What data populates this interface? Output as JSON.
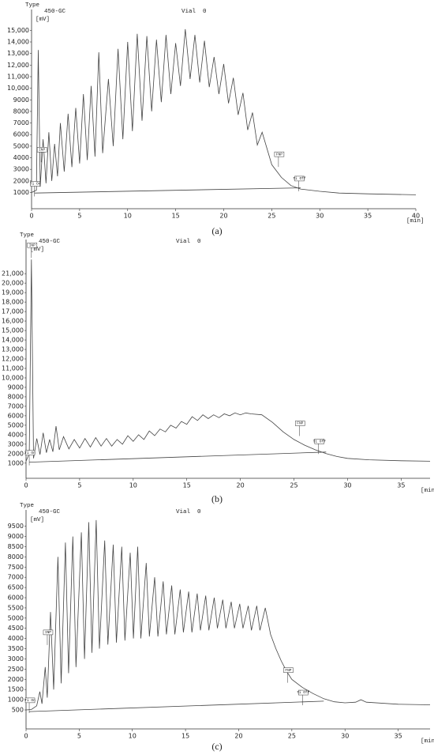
{
  "chart_data": [
    {
      "type": "line",
      "header": "Type",
      "instrument": "450-GC",
      "vial": "Vial  0",
      "y_unit": "[mV]",
      "x_unit": "[min]",
      "caption": "(a)",
      "xlim": [
        0,
        40
      ],
      "xticks": [
        0,
        5,
        10,
        15,
        20,
        25,
        30,
        35,
        40
      ],
      "ylim": [
        -400,
        16800
      ],
      "yticks": [
        1000,
        2000,
        3000,
        4000,
        5000,
        6000,
        7000,
        8000,
        9000,
        {
          "value": 10000,
          "label": "10,000"
        },
        {
          "value": 11000,
          "label": "11,000"
        },
        {
          "value": 12000,
          "label": "12,000"
        },
        {
          "value": 13000,
          "label": "13,000"
        },
        {
          "value": 14000,
          "label": "14,000"
        },
        {
          "value": 15000,
          "label": "15,000"
        }
      ],
      "series": [
        {
          "color": "#444444",
          "x": [
            0,
            0.5,
            0.7,
            0.9,
            1.2,
            1.5,
            1.8,
            2.1,
            2.4,
            2.7,
            3.0,
            3.4,
            3.8,
            4.2,
            4.6,
            5.0,
            5.4,
            5.8,
            6.2,
            6.6,
            7.0,
            7.4,
            8.0,
            8.5,
            9.0,
            9.5,
            10.0,
            10.5,
            11.0,
            11.5,
            12.0,
            12.5,
            13.0,
            13.5,
            14.0,
            14.5,
            15.0,
            15.5,
            16.0,
            16.5,
            17.0,
            17.5,
            18.0,
            18.5,
            19.0,
            19.5,
            20.0,
            20.5,
            21.0,
            21.5,
            22.0,
            22.5,
            23.0,
            23.5,
            24.0,
            25.0,
            26.0,
            27.0,
            28.0,
            30.0,
            32.0,
            35.0,
            40.0
          ],
          "values": [
            1000,
            1200,
            13300,
            1500,
            5600,
            1800,
            6200,
            2000,
            5200,
            2400,
            7000,
            2800,
            7800,
            3200,
            8300,
            3500,
            9500,
            3800,
            10200,
            4100,
            13100,
            4400,
            10800,
            5000,
            13400,
            5600,
            14000,
            6300,
            14700,
            7200,
            14500,
            8000,
            14200,
            8800,
            14600,
            9500,
            13900,
            10200,
            15100,
            10800,
            14600,
            10500,
            14100,
            10100,
            12700,
            9500,
            12100,
            8700,
            10900,
            7700,
            9600,
            6400,
            7900,
            5100,
            6200,
            3400,
            2300,
            1600,
            1300,
            1100,
            950,
            880,
            800
          ]
        },
        {
          "color": "#444444",
          "x": [
            0.3,
            28
          ],
          "values": [
            950,
            1400
          ]
        }
      ],
      "annotations": [
        {
          "text": "Ti On",
          "x": 0.3,
          "y": 1750
        },
        {
          "text": "INP",
          "x": 1.0,
          "y": 4700
        },
        {
          "text": "FNP",
          "x": 25.7,
          "y": 4300
        },
        {
          "text": "Ti Off",
          "x": 27.8,
          "y": 2200
        }
      ]
    },
    {
      "type": "line",
      "header": "Type",
      "instrument": "450-GC",
      "vial": "Vial  0",
      "y_unit": "[mV]",
      "x_unit": "[min]",
      "caption": "(b)",
      "xlim": [
        0,
        37.7
      ],
      "xticks": [
        0,
        5,
        10,
        15,
        20,
        25,
        30,
        35
      ],
      "ylim": [
        -600,
        24600
      ],
      "yticks": [
        1000,
        2000,
        3000,
        4000,
        5000,
        6000,
        7000,
        8000,
        9000,
        {
          "value": 10000,
          "label": "10,000"
        },
        {
          "value": 11000,
          "label": "11,000"
        },
        {
          "value": 12000,
          "label": "12,000"
        },
        {
          "value": 13000,
          "label": "13,000"
        },
        {
          "value": 14000,
          "label": "14,000"
        },
        {
          "value": 15000,
          "label": "15,000"
        },
        {
          "value": 16000,
          "label": "16,000"
        },
        {
          "value": 17000,
          "label": "17,000"
        },
        {
          "value": 18000,
          "label": "18,000"
        },
        {
          "value": 19000,
          "label": "19,000"
        },
        {
          "value": 20000,
          "label": "20,000"
        },
        {
          "value": 21000,
          "label": "21,000"
        }
      ],
      "series": [
        {
          "color": "#444444",
          "x": [
            0,
            0.3,
            0.5,
            0.7,
            1.0,
            1.3,
            1.6,
            1.9,
            2.2,
            2.5,
            2.8,
            3.1,
            3.5,
            4.0,
            4.5,
            5.0,
            5.5,
            6.0,
            6.5,
            7.0,
            7.5,
            8.0,
            8.5,
            9.0,
            9.5,
            10.0,
            10.5,
            11.0,
            11.5,
            12.0,
            12.5,
            13.0,
            13.5,
            14.0,
            14.5,
            15.0,
            15.5,
            16.0,
            16.5,
            17.0,
            17.5,
            18.0,
            18.5,
            19.0,
            19.5,
            20.0,
            20.5,
            21.0,
            22,
            23,
            24,
            25,
            26,
            27,
            28,
            29,
            30,
            32,
            35,
            37.7
          ],
          "values": [
            1200,
            2000,
            22500,
            1500,
            3600,
            1900,
            4200,
            2100,
            3500,
            2200,
            4900,
            2400,
            3800,
            2500,
            3500,
            2600,
            3600,
            2700,
            3700,
            2800,
            3600,
            2800,
            3500,
            3000,
            3900,
            3300,
            4000,
            3500,
            4400,
            3900,
            4600,
            4300,
            5000,
            4700,
            5400,
            5100,
            5900,
            5500,
            6100,
            5700,
            6100,
            5800,
            6200,
            6000,
            6300,
            6100,
            6300,
            6200,
            6100,
            5300,
            4300,
            3500,
            2900,
            2400,
            2000,
            1700,
            1500,
            1350,
            1250,
            1200
          ]
        },
        {
          "color": "#444444",
          "x": [
            0.3,
            28
          ],
          "values": [
            1100,
            2170
          ]
        }
      ],
      "annotations": [
        {
          "text": "INP",
          "x": 0.5,
          "y": 24000
        },
        {
          "text": "Ti On",
          "x": 0.3,
          "y": 2100
        },
        {
          "text": "FNP",
          "x": 25.5,
          "y": 5200
        },
        {
          "text": "Ti Off",
          "x": 27.3,
          "y": 3300
        }
      ]
    },
    {
      "type": "line",
      "header": "Type",
      "instrument": "450-GC",
      "vial": "Vial  0",
      "y_unit": "[mV]",
      "x_unit": "[min]",
      "caption": "(c)",
      "xlim": [
        0,
        38
      ],
      "xticks": [
        0,
        5,
        10,
        15,
        20,
        25,
        30,
        35
      ],
      "ylim": [
        -430,
        10300
      ],
      "yticks": [
        500,
        1000,
        1500,
        2000,
        2500,
        3000,
        3500,
        4000,
        4500,
        5000,
        5500,
        6000,
        6500,
        7000,
        7500,
        8000,
        8500,
        9000,
        9500
      ],
      "series": [
        {
          "color": "#444444",
          "x": [
            0,
            0.5,
            1.0,
            1.3,
            1.5,
            1.8,
            2.0,
            2.3,
            2.6,
            3.0,
            3.3,
            3.7,
            4.0,
            4.4,
            4.7,
            5.2,
            5.5,
            5.9,
            6.2,
            6.6,
            6.9,
            7.4,
            7.7,
            8.2,
            8.5,
            9.0,
            9.3,
            9.8,
            10.1,
            10.5,
            10.8,
            11.3,
            11.6,
            12.1,
            12.4,
            12.9,
            13.2,
            13.7,
            14.0,
            14.5,
            14.8,
            15.3,
            15.6,
            16.1,
            16.4,
            16.9,
            17.2,
            17.7,
            18.0,
            18.5,
            18.8,
            19.3,
            19.6,
            20.1,
            20.4,
            20.9,
            21.2,
            21.7,
            22.0,
            22.5,
            23,
            23.5,
            24,
            24.5,
            25,
            26,
            27,
            28,
            29,
            30,
            31,
            31.5,
            32,
            35,
            38
          ],
          "values": [
            500,
            520,
            700,
            1400,
            800,
            2600,
            1100,
            5300,
            1500,
            8000,
            1800,
            8700,
            2300,
            9000,
            2600,
            9200,
            3000,
            9700,
            3300,
            9800,
            3500,
            8800,
            3700,
            8600,
            3800,
            8500,
            3900,
            8200,
            4000,
            8500,
            4000,
            7700,
            4100,
            7000,
            4100,
            6800,
            4200,
            6600,
            4200,
            6400,
            4300,
            6300,
            4300,
            6200,
            4400,
            6100,
            4400,
            6000,
            4500,
            5900,
            4500,
            5800,
            4500,
            5700,
            4500,
            5600,
            4400,
            5600,
            4400,
            5500,
            4200,
            3500,
            2900,
            2400,
            2000,
            1600,
            1300,
            1050,
            900,
            850,
            880,
            1000,
            880,
            780,
            750
          ]
        },
        {
          "color": "#444444",
          "x": [
            0.3,
            28
          ],
          "values": [
            420,
            930
          ]
        }
      ],
      "annotations": [
        {
          "text": "Ti On",
          "x": 0.3,
          "y": 970
        },
        {
          "text": "INP",
          "x": 2.0,
          "y": 4300
        },
        {
          "text": "FNP",
          "x": 24.6,
          "y": 2450
        },
        {
          "text": "Ti Off",
          "x": 26,
          "y": 1350
        }
      ]
    }
  ]
}
